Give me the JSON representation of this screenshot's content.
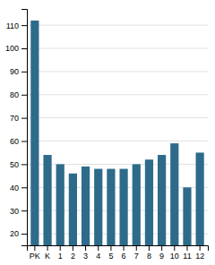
{
  "chart_data": {
    "type": "bar",
    "categories": [
      "PK",
      "K",
      "1",
      "2",
      "3",
      "4",
      "5",
      "6",
      "7",
      "8",
      "9",
      "10",
      "11",
      "12"
    ],
    "values": [
      112,
      54,
      50,
      46,
      49,
      48,
      48,
      48,
      50,
      52,
      54,
      59,
      40,
      55
    ],
    "color": "#2e6b8a",
    "ylim": [
      15,
      117
    ],
    "yticks": [
      20,
      30,
      40,
      50,
      60,
      70,
      80,
      90,
      100,
      110
    ],
    "grid": true
  }
}
